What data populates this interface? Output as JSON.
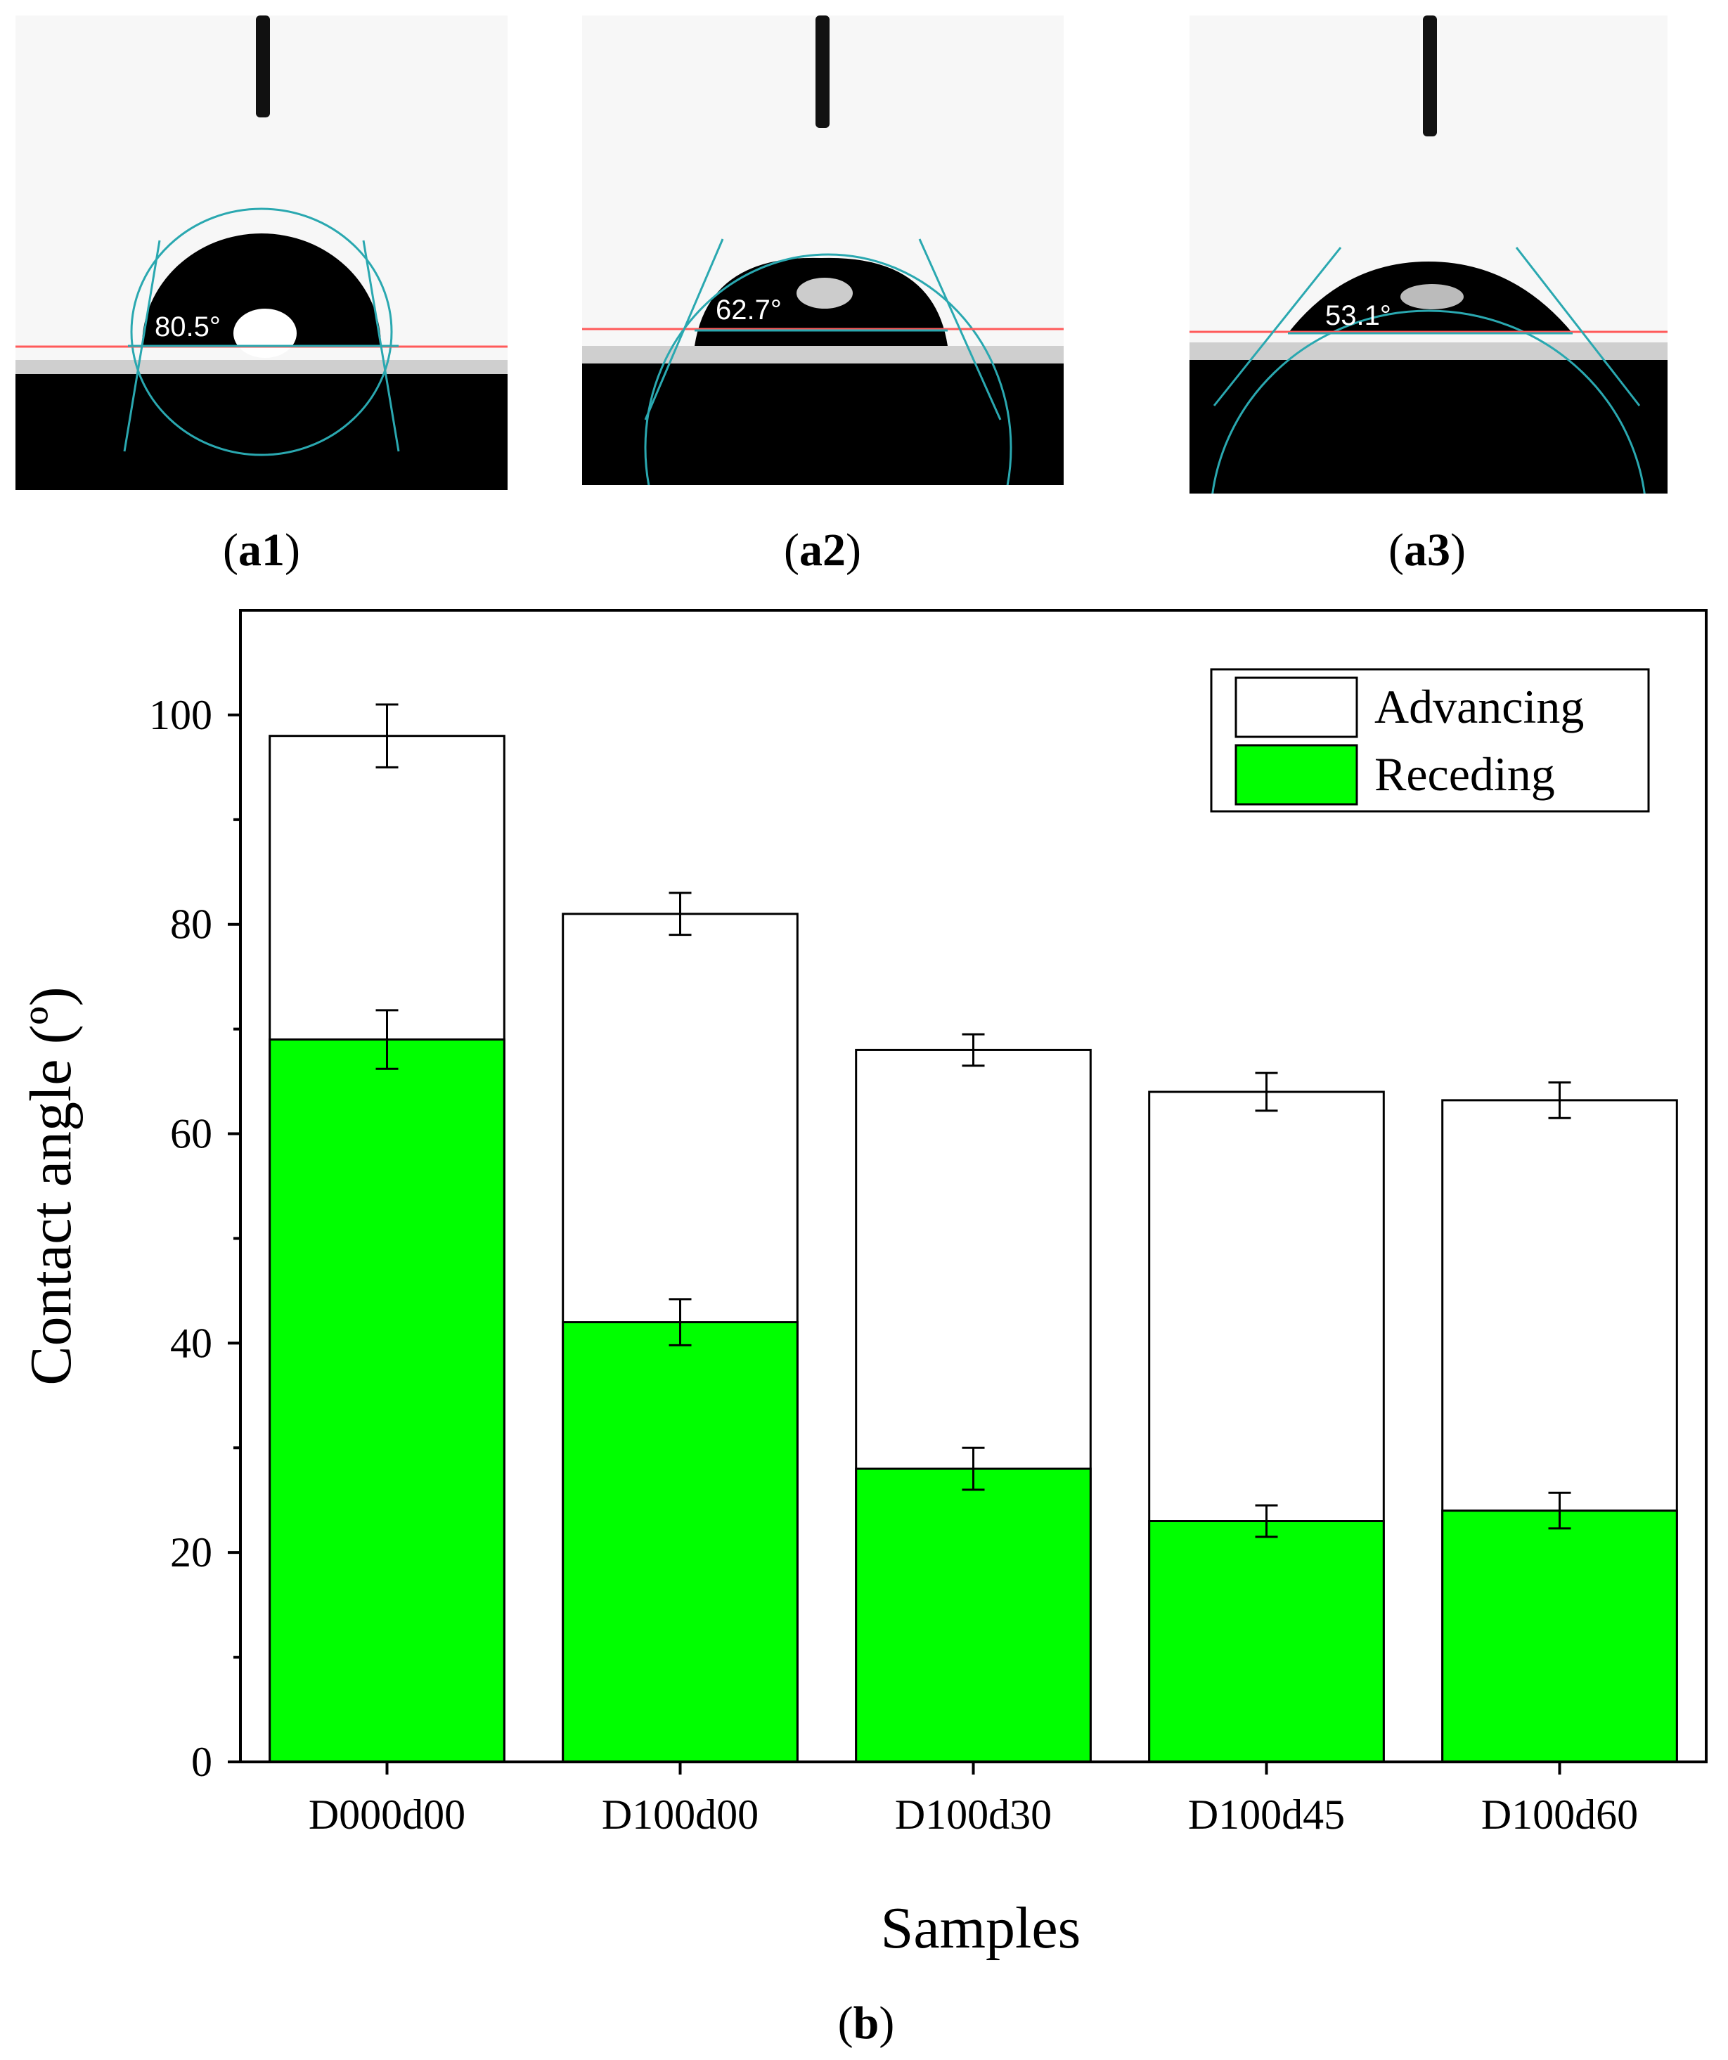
{
  "photos": [
    {
      "id": "a1",
      "panel_label": "a1",
      "angle_label": "80.5°"
    },
    {
      "id": "a2",
      "panel_label": "a2",
      "angle_label": "62.7°"
    },
    {
      "id": "a3",
      "panel_label": "a3",
      "angle_label": "53.1°"
    }
  ],
  "chart_panel_label": "b",
  "chart_data": {
    "type": "bar",
    "title": "",
    "xlabel": "Samples",
    "ylabel": "Contact angle (º)",
    "ylim": [
      0,
      110
    ],
    "yticks": [
      0,
      20,
      40,
      60,
      80,
      100
    ],
    "categories": [
      "D000d00",
      "D100d00",
      "D100d30",
      "D100d45",
      "D100d60"
    ],
    "series": [
      {
        "name": "Advancing",
        "color": "#ffffff",
        "values": [
          98,
          81,
          68,
          64,
          63.2
        ],
        "errors": [
          3,
          2,
          1.5,
          1.8,
          1.7
        ]
      },
      {
        "name": "Receding",
        "color": "#00ff00",
        "values": [
          69,
          42,
          28,
          23,
          24
        ],
        "errors": [
          2.8,
          2.2,
          2,
          1.5,
          1.7
        ]
      }
    ],
    "legend_position": "top-right",
    "grid": false
  }
}
